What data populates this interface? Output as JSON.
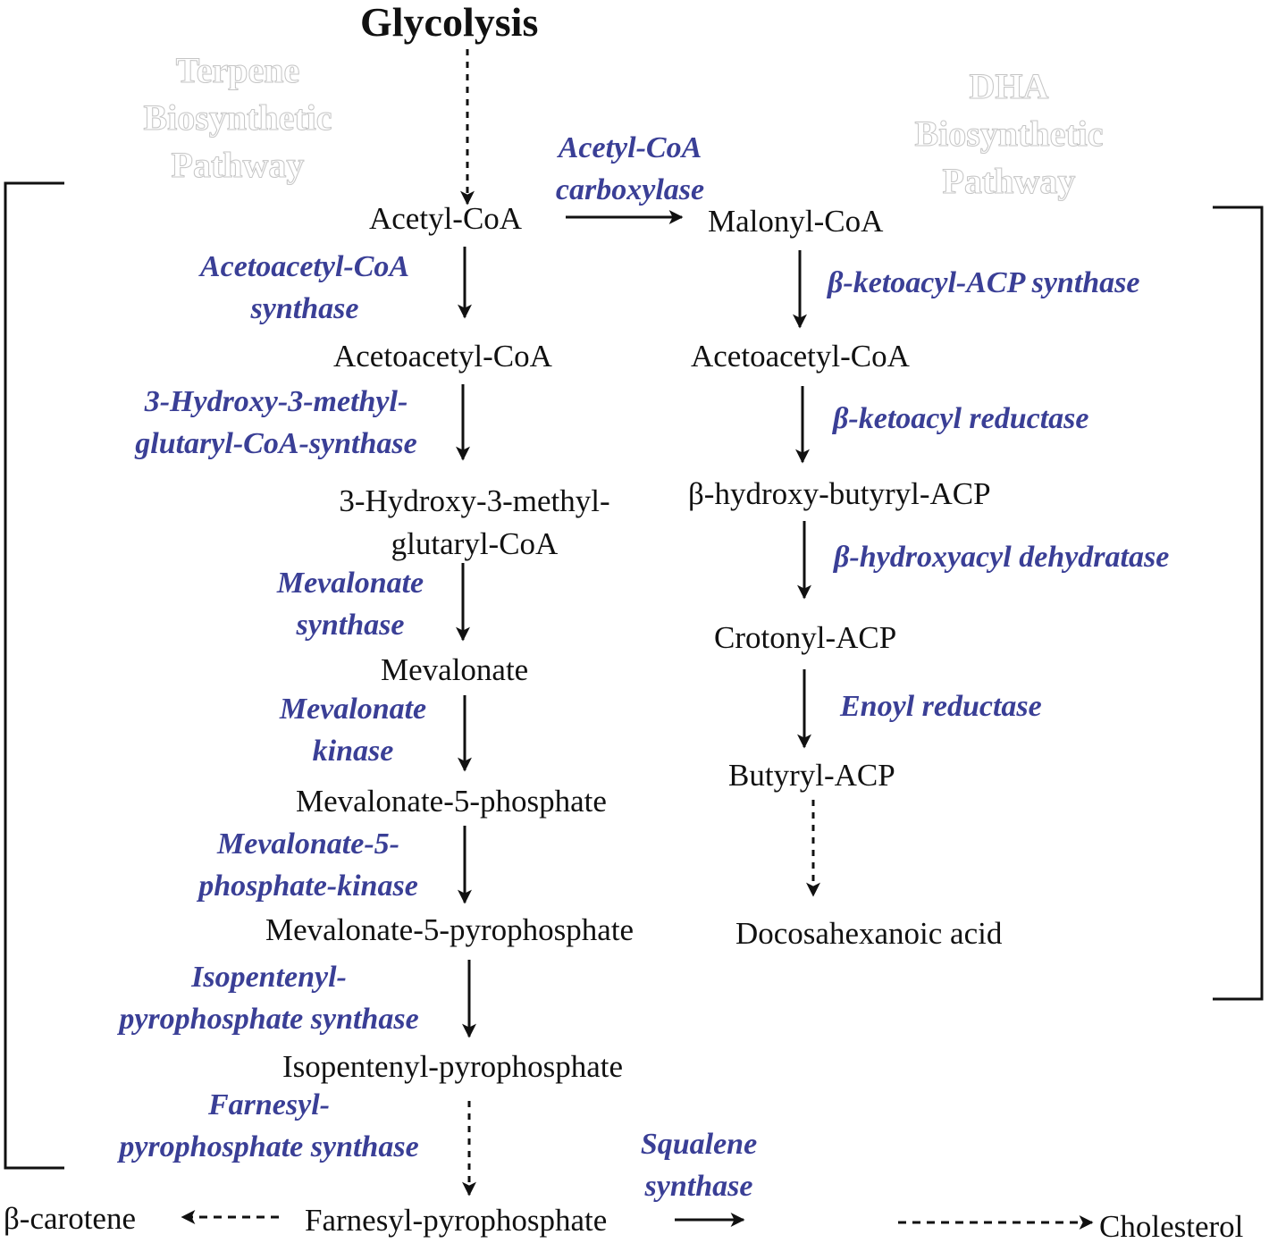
{
  "title": "Glycolysis",
  "pathway_labels": {
    "terpene": "Terpene\nBiosynthetic\nPathway",
    "dha": "DHA\nBiosynthetic\nPathway"
  },
  "terpene_pathway": {
    "metabolites": [
      "Acetyl-CoA",
      "Acetoacetyl-CoA",
      "3-Hydroxy-3-methyl-\nglutaryl-CoA",
      "Mevalonate",
      "Mevalonate-5-phosphate",
      "Mevalonate-5-pyrophosphate",
      "Isopentenyl-pyrophosphate",
      "Farnesyl-pyrophosphate"
    ],
    "enzymes": [
      "Acetoacetyl-CoA\nsynthase",
      "3-Hydroxy-3-methyl-\nglutaryl-CoA-synthase",
      "Mevalonate\nsynthase",
      "Mevalonate\nkinase",
      "Mevalonate-5-\nphosphate-kinase",
      "Isopentenyl-\npyrophosphate synthase",
      "Farnesyl-\npyrophosphate synthase"
    ]
  },
  "dha_pathway": {
    "entry_enzyme": "Acetyl-CoA\ncarboxylase",
    "metabolites": [
      "Malonyl-CoA",
      "Acetoacetyl-CoA",
      "β-hydroxy-butyryl-ACP",
      "Crotonyl-ACP",
      "Butyryl-ACP",
      "Docosahexanoic acid"
    ],
    "enzymes": [
      "β-ketoacyl-ACP synthase",
      "β-ketoacyl reductase",
      "β-hydroxyacyl dehydratase",
      "Enoyl reductase"
    ]
  },
  "products": {
    "left": "β-carotene",
    "right_enzyme": "Squalene\nsynthase",
    "right": "Cholesterol"
  },
  "colors": {
    "enzyme_text": "#3a3f96",
    "metabolite_text": "#111111",
    "arrow": "#111111",
    "pathway_label_outline": "#c6c6c6"
  }
}
